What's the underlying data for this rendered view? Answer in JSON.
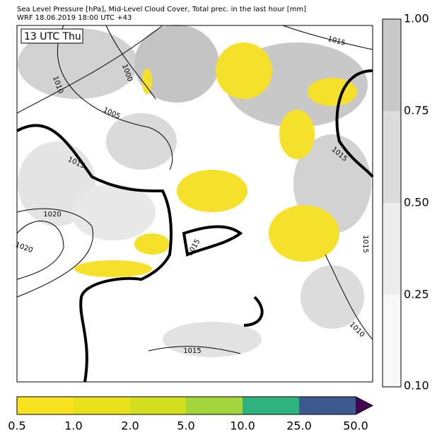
{
  "header": {
    "title_line1": "Sea Level Pressure [hPa], Mid-Level Cloud Cover, Total prec. in the last hour [mm]",
    "title_line2": "WRF 18.06.2019 18:00 UTC +43"
  },
  "map": {
    "time_label": "13 UTC Thu",
    "contour_labels": [
      "1000",
      "1010",
      "1005",
      "1015",
      "1015",
      "1015",
      "1020",
      "1020",
      "1015",
      "1015",
      "1010",
      "1015"
    ]
  },
  "cloud_colorbar": {
    "ticks": [
      "1.00",
      "0.75",
      "0.50",
      "0.25",
      "0.10"
    ]
  },
  "precip_colorbar": {
    "ticks": [
      "0.5",
      "1.0",
      "2.0",
      "5.0",
      "10.0",
      "25.0",
      "50.0"
    ]
  }
}
